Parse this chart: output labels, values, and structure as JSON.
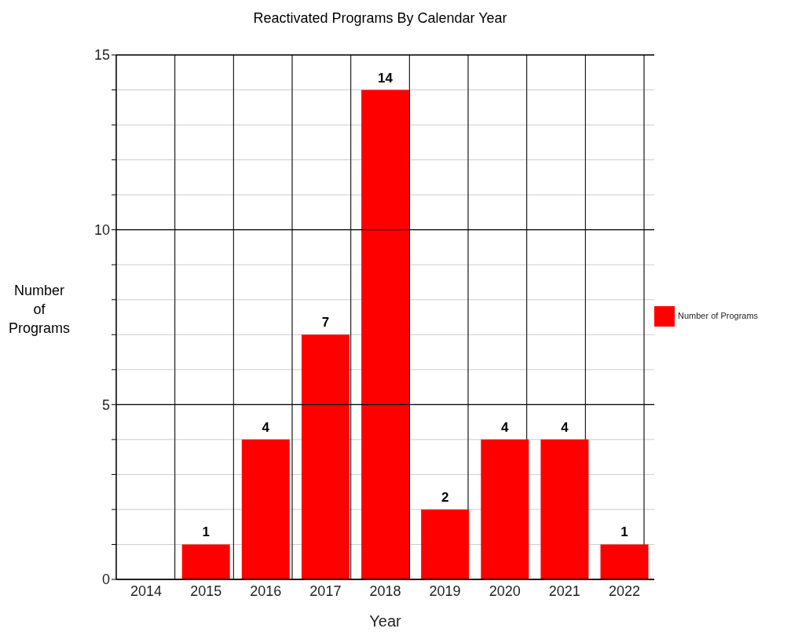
{
  "chart_data": {
    "type": "bar",
    "title": "Reactivated Programs By Calendar Year",
    "xlabel": "Year",
    "ylabel": "Number of Programs",
    "categories": [
      "2014",
      "2015",
      "2016",
      "2017",
      "2018",
      "2019",
      "2020",
      "2021",
      "2022"
    ],
    "series": [
      {
        "name": "Number of Programs",
        "color": "#ff0000",
        "values": [
          0,
          1,
          4,
          7,
          14,
          2,
          4,
          4,
          1
        ],
        "value_labels": [
          null,
          "1",
          "4",
          "7",
          "14",
          "2",
          "4",
          "4",
          "1"
        ]
      }
    ],
    "ylim": [
      0,
      15
    ],
    "yticks": [
      0,
      {
        "value": 1,
        "label": null
      },
      {
        "value": 2,
        "label": null
      },
      {
        "value": 3,
        "label": null
      },
      {
        "value": 4,
        "label": null
      },
      5,
      {
        "value": 6,
        "label": null
      },
      {
        "value": 7,
        "label": null
      },
      {
        "value": 8,
        "label": null
      },
      {
        "value": 9,
        "label": null
      },
      10,
      {
        "value": 11,
        "label": null
      },
      {
        "value": 12,
        "label": null
      },
      {
        "value": 13,
        "label": null
      },
      {
        "value": 14,
        "label": null
      },
      15
    ],
    "grid": true,
    "legend": "right"
  }
}
